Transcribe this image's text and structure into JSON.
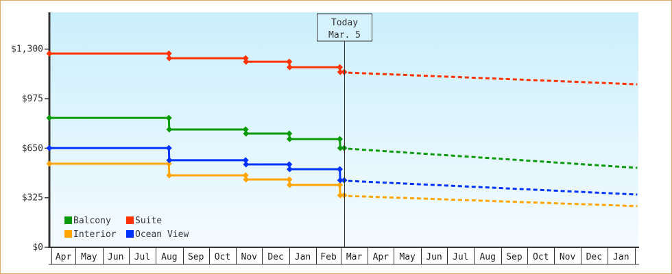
{
  "chart_data": {
    "type": "line",
    "title": "",
    "xlabel": "",
    "ylabel": "",
    "ylim": [
      0,
      1300
    ],
    "y_ticks": [
      {
        "value": 0,
        "label": "$0"
      },
      {
        "value": 325,
        "label": "$325"
      },
      {
        "value": 650,
        "label": "$650"
      },
      {
        "value": 975,
        "label": "$975"
      },
      {
        "value": 1300,
        "label": "$1,300"
      }
    ],
    "x_tick_labels": [
      "Apr",
      "May",
      "Jun",
      "Jul",
      "Aug",
      "Sep",
      "Oct",
      "Nov",
      "Dec",
      "Jan",
      "Feb",
      "Mar",
      "Apr",
      "May",
      "Jun",
      "Jul",
      "Aug",
      "Sep",
      "Oct",
      "Nov",
      "Dec",
      "Jan"
    ],
    "today_marker": {
      "line1": "Today",
      "line2": "Mar. 5",
      "date": "Mar 5"
    },
    "grid": false,
    "legend_position": "bottom-left",
    "series": [
      {
        "name": "Balcony",
        "color": "#0a9a0a",
        "actual": [
          {
            "date": "Apr 1",
            "value": 849
          },
          {
            "date": "Aug 16",
            "value": 849
          },
          {
            "date": "Aug 16",
            "value": 773
          },
          {
            "date": "Nov 12",
            "value": 773
          },
          {
            "date": "Nov 12",
            "value": 746
          },
          {
            "date": "Jan 1",
            "value": 746
          },
          {
            "date": "Jan 1",
            "value": 710
          },
          {
            "date": "Feb 28",
            "value": 710
          },
          {
            "date": "Feb 28",
            "value": 651
          },
          {
            "date": "Mar 5",
            "value": 651
          }
        ],
        "forecast": [
          {
            "date": "Mar 5",
            "value": 651
          },
          {
            "date": "Feb 4",
            "value": 521
          }
        ]
      },
      {
        "name": "Suite",
        "color": "#ff3300",
        "actual": [
          {
            "date": "Apr 1",
            "value": 1271
          },
          {
            "date": "Aug 16",
            "value": 1271
          },
          {
            "date": "Aug 16",
            "value": 1240
          },
          {
            "date": "Nov 12",
            "value": 1240
          },
          {
            "date": "Nov 12",
            "value": 1217
          },
          {
            "date": "Jan 1",
            "value": 1217
          },
          {
            "date": "Jan 1",
            "value": 1181
          },
          {
            "date": "Feb 28",
            "value": 1181
          },
          {
            "date": "Feb 28",
            "value": 1150
          },
          {
            "date": "Mar 5",
            "value": 1150
          }
        ],
        "forecast": [
          {
            "date": "Mar 5",
            "value": 1150
          },
          {
            "date": "Feb 4",
            "value": 1069
          }
        ]
      },
      {
        "name": "Interior",
        "color": "#ffa500",
        "actual": [
          {
            "date": "Apr 1",
            "value": 548
          },
          {
            "date": "Aug 16",
            "value": 548
          },
          {
            "date": "Aug 16",
            "value": 472
          },
          {
            "date": "Nov 12",
            "value": 472
          },
          {
            "date": "Nov 12",
            "value": 445
          },
          {
            "date": "Jan 1",
            "value": 445
          },
          {
            "date": "Jan 1",
            "value": 409
          },
          {
            "date": "Feb 28",
            "value": 409
          },
          {
            "date": "Feb 28",
            "value": 341
          },
          {
            "date": "Mar 5",
            "value": 341
          }
        ],
        "forecast": [
          {
            "date": "Mar 5",
            "value": 341
          },
          {
            "date": "Feb 4",
            "value": 270
          }
        ]
      },
      {
        "name": "Ocean View",
        "color": "#0033ff",
        "actual": [
          {
            "date": "Apr 1",
            "value": 651
          },
          {
            "date": "Aug 16",
            "value": 651
          },
          {
            "date": "Aug 16",
            "value": 571
          },
          {
            "date": "Nov 12",
            "value": 571
          },
          {
            "date": "Nov 12",
            "value": 544
          },
          {
            "date": "Jan 1",
            "value": 544
          },
          {
            "date": "Jan 1",
            "value": 512
          },
          {
            "date": "Feb 28",
            "value": 512
          },
          {
            "date": "Feb 28",
            "value": 440
          },
          {
            "date": "Mar 5",
            "value": 440
          }
        ],
        "forecast": [
          {
            "date": "Mar 5",
            "value": 440
          },
          {
            "date": "Feb 4",
            "value": 346
          }
        ]
      }
    ]
  }
}
